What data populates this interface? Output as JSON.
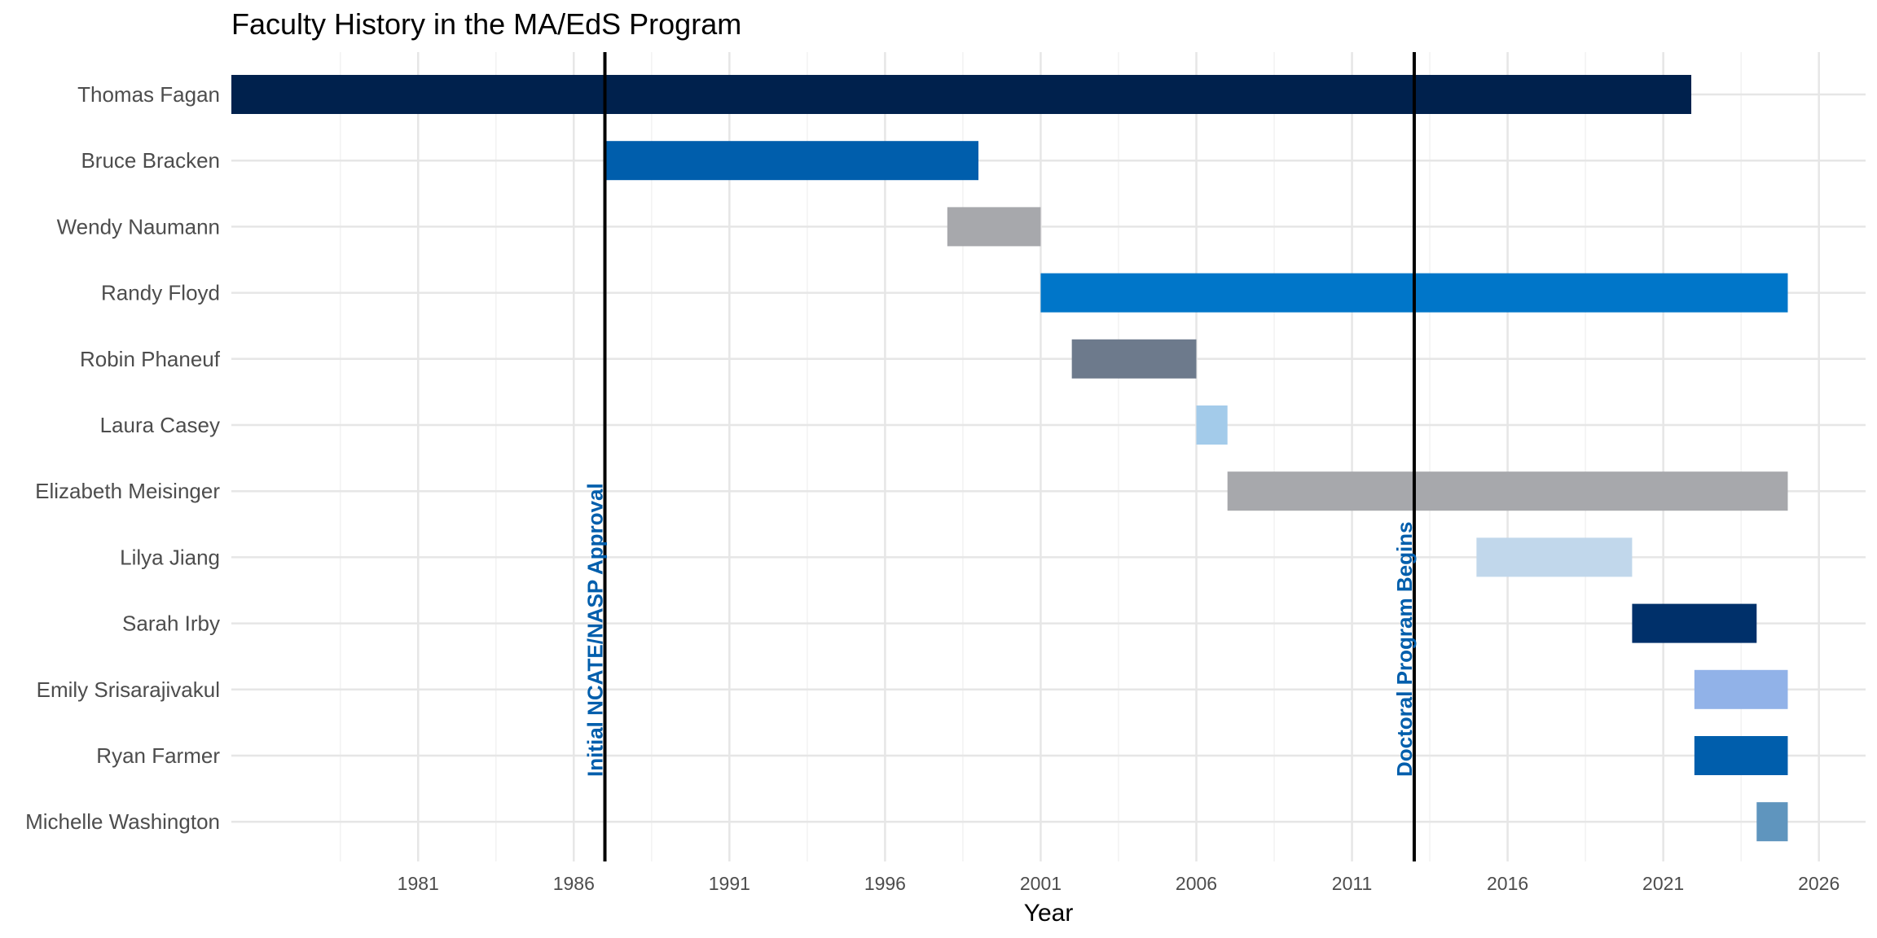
{
  "chart_data": {
    "type": "gantt",
    "title": "Faculty History in the MA/EdS Program",
    "xlabel": "Year",
    "ylabel": "",
    "xlim": [
      1975,
      2027.5
    ],
    "xticks": [
      1981,
      1986,
      1991,
      1996,
      2001,
      2006,
      2011,
      2016,
      2021,
      2026
    ],
    "grid": true,
    "series": [
      {
        "name": "Thomas Fagan",
        "start": 1975,
        "end": 2021.9,
        "color": "#00214D"
      },
      {
        "name": "Bruce Bracken",
        "start": 1987,
        "end": 1999,
        "color": "#005EAC"
      },
      {
        "name": "Wendy Naumann",
        "start": 1998,
        "end": 2001,
        "color": "#A7A8AC"
      },
      {
        "name": "Randy Floyd",
        "start": 2001,
        "end": 2025,
        "color": "#0076C9"
      },
      {
        "name": "Robin Phaneuf",
        "start": 2002,
        "end": 2006,
        "color": "#6D7A8C"
      },
      {
        "name": "Laura Casey",
        "start": 2006,
        "end": 2007,
        "color": "#A3CBEA"
      },
      {
        "name": "Elizabeth Meisinger",
        "start": 2007,
        "end": 2025,
        "color": "#A7A8AC"
      },
      {
        "name": "Lilya Jiang",
        "start": 2015,
        "end": 2020,
        "color": "#C1D7EB"
      },
      {
        "name": "Sarah Irby",
        "start": 2020,
        "end": 2024,
        "color": "#00306A"
      },
      {
        "name": "Emily Srisarajivakul",
        "start": 2022,
        "end": 2025,
        "color": "#91B2E8"
      },
      {
        "name": "Ryan Farmer",
        "start": 2022,
        "end": 2025,
        "color": "#005EAC"
      },
      {
        "name": "Michelle Washington",
        "start": 2024,
        "end": 2025,
        "color": "#5F95BE"
      }
    ],
    "vlines": [
      {
        "x": 1987,
        "label": "Initial NCATE/NASP Approval",
        "label_color": "#005EAC"
      },
      {
        "x": 2013,
        "label": "Doctoral Program Begins",
        "label_color": "#005EAC"
      }
    ]
  }
}
